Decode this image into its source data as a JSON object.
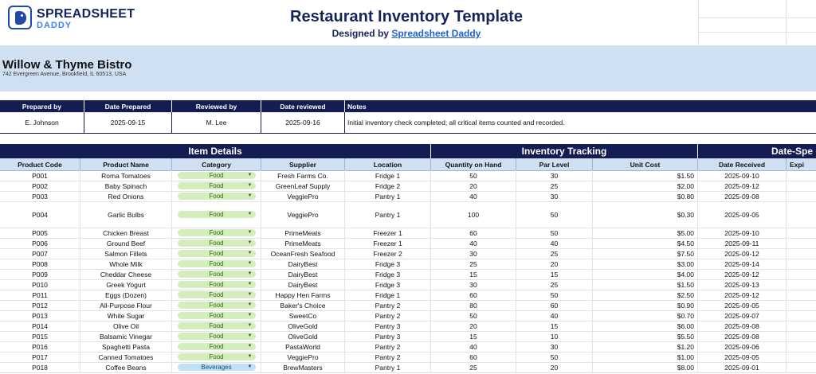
{
  "header": {
    "logo_line1": "SPREADSHEET",
    "logo_line2": "DADDY",
    "title": "Restaurant Inventory Template",
    "subtitle_prefix": "Designed by ",
    "subtitle_link": "Spreadsheet Daddy"
  },
  "business": {
    "name": "Willow & Thyme Bistro",
    "address": "742 Evergreen Avenue, Brookfield, IL 60513, USA"
  },
  "meta": {
    "headers": [
      "Prepared by",
      "Date Prepared",
      "Reviewed by",
      "Date reviewed",
      "Notes"
    ],
    "values": [
      "E. Johnson",
      "2025-09-15",
      "M. Lee",
      "2025-09-16",
      "Initial inventory check completed; all critical items counted and recorded."
    ]
  },
  "groups": [
    "Item Details",
    "Inventory Tracking",
    "Date-Spe"
  ],
  "columns": [
    "Product Code",
    "Product Name",
    "Category",
    "Supplier",
    "Location",
    "Quantity on Hand",
    "Par Level",
    "Unit Cost",
    "Date Received",
    "Expi"
  ],
  "rows": [
    {
      "code": "P001",
      "name": "Roma Tomatoes",
      "category": "Food",
      "supplier": "Fresh Farms Co.",
      "location": "Fridge 1",
      "qty": "50",
      "par": "30",
      "cost": "$1.50",
      "received": "2025-09-10"
    },
    {
      "code": "P002",
      "name": "Baby Spinach",
      "category": "Food",
      "supplier": "GreenLeaf Supply",
      "location": "Fridge 2",
      "qty": "20",
      "par": "25",
      "cost": "$2.00",
      "received": "2025-09-12"
    },
    {
      "code": "P003",
      "name": "Red Onions",
      "category": "Food",
      "supplier": "VeggiePro",
      "location": "Pantry 1",
      "qty": "40",
      "par": "30",
      "cost": "$0.80",
      "received": "2025-09-08"
    },
    {
      "code": "P004",
      "name": "Garlic Bulbs",
      "category": "Food",
      "supplier": "VeggiePro",
      "location": "Pantry 1",
      "qty": "100",
      "par": "50",
      "cost": "$0.30",
      "received": "2025-09-05"
    },
    {
      "code": "P005",
      "name": "Chicken Breast",
      "category": "Food",
      "supplier": "PrimeMeats",
      "location": "Freezer 1",
      "qty": "60",
      "par": "50",
      "cost": "$5.00",
      "received": "2025-09-10"
    },
    {
      "code": "P006",
      "name": "Ground Beef",
      "category": "Food",
      "supplier": "PrimeMeats",
      "location": "Freezer 1",
      "qty": "40",
      "par": "40",
      "cost": "$4.50",
      "received": "2025-09-11"
    },
    {
      "code": "P007",
      "name": "Salmon Fillets",
      "category": "Food",
      "supplier": "OceanFresh Seafood",
      "location": "Freezer 2",
      "qty": "30",
      "par": "25",
      "cost": "$7.50",
      "received": "2025-09-12"
    },
    {
      "code": "P008",
      "name": "Whole Milk",
      "category": "Food",
      "supplier": "DairyBest",
      "location": "Fridge 3",
      "qty": "25",
      "par": "20",
      "cost": "$3.00",
      "received": "2025-09-14"
    },
    {
      "code": "P009",
      "name": "Cheddar Cheese",
      "category": "Food",
      "supplier": "DairyBest",
      "location": "Fridge 3",
      "qty": "15",
      "par": "15",
      "cost": "$4.00",
      "received": "2025-09-12"
    },
    {
      "code": "P010",
      "name": "Greek Yogurt",
      "category": "Food",
      "supplier": "DairyBest",
      "location": "Fridge 3",
      "qty": "30",
      "par": "25",
      "cost": "$1.50",
      "received": "2025-09-13"
    },
    {
      "code": "P011",
      "name": "Eggs (Dozen)",
      "category": "Food",
      "supplier": "Happy Hen Farms",
      "location": "Fridge 1",
      "qty": "60",
      "par": "50",
      "cost": "$2.50",
      "received": "2025-09-12"
    },
    {
      "code": "P012",
      "name": "All-Purpose Flour",
      "category": "Food",
      "supplier": "Baker's Choice",
      "location": "Pantry 2",
      "qty": "80",
      "par": "60",
      "cost": "$0.90",
      "received": "2025-09-05"
    },
    {
      "code": "P013",
      "name": "White Sugar",
      "category": "Food",
      "supplier": "SweetCo",
      "location": "Pantry 2",
      "qty": "50",
      "par": "40",
      "cost": "$0.70",
      "received": "2025-09-07"
    },
    {
      "code": "P014",
      "name": "Olive Oil",
      "category": "Food",
      "supplier": "OliveGold",
      "location": "Pantry 3",
      "qty": "20",
      "par": "15",
      "cost": "$6.00",
      "received": "2025-09-08"
    },
    {
      "code": "P015",
      "name": "Balsamic Vinegar",
      "category": "Food",
      "supplier": "OliveGold",
      "location": "Pantry 3",
      "qty": "15",
      "par": "10",
      "cost": "$5.50",
      "received": "2025-09-08"
    },
    {
      "code": "P016",
      "name": "Spaghetti Pasta",
      "category": "Food",
      "supplier": "PastaWorld",
      "location": "Pantry 2",
      "qty": "40",
      "par": "30",
      "cost": "$1.20",
      "received": "2025-09-06"
    },
    {
      "code": "P017",
      "name": "Canned Tomatoes",
      "category": "Food",
      "supplier": "VeggiePro",
      "location": "Pantry 2",
      "qty": "60",
      "par": "50",
      "cost": "$1.00",
      "received": "2025-09-05"
    },
    {
      "code": "P018",
      "name": "Coffee Beans",
      "category": "Beverages",
      "supplier": "BrewMasters",
      "location": "Pantry 1",
      "qty": "25",
      "par": "20",
      "cost": "$8.00",
      "received": "2025-09-01"
    }
  ]
}
